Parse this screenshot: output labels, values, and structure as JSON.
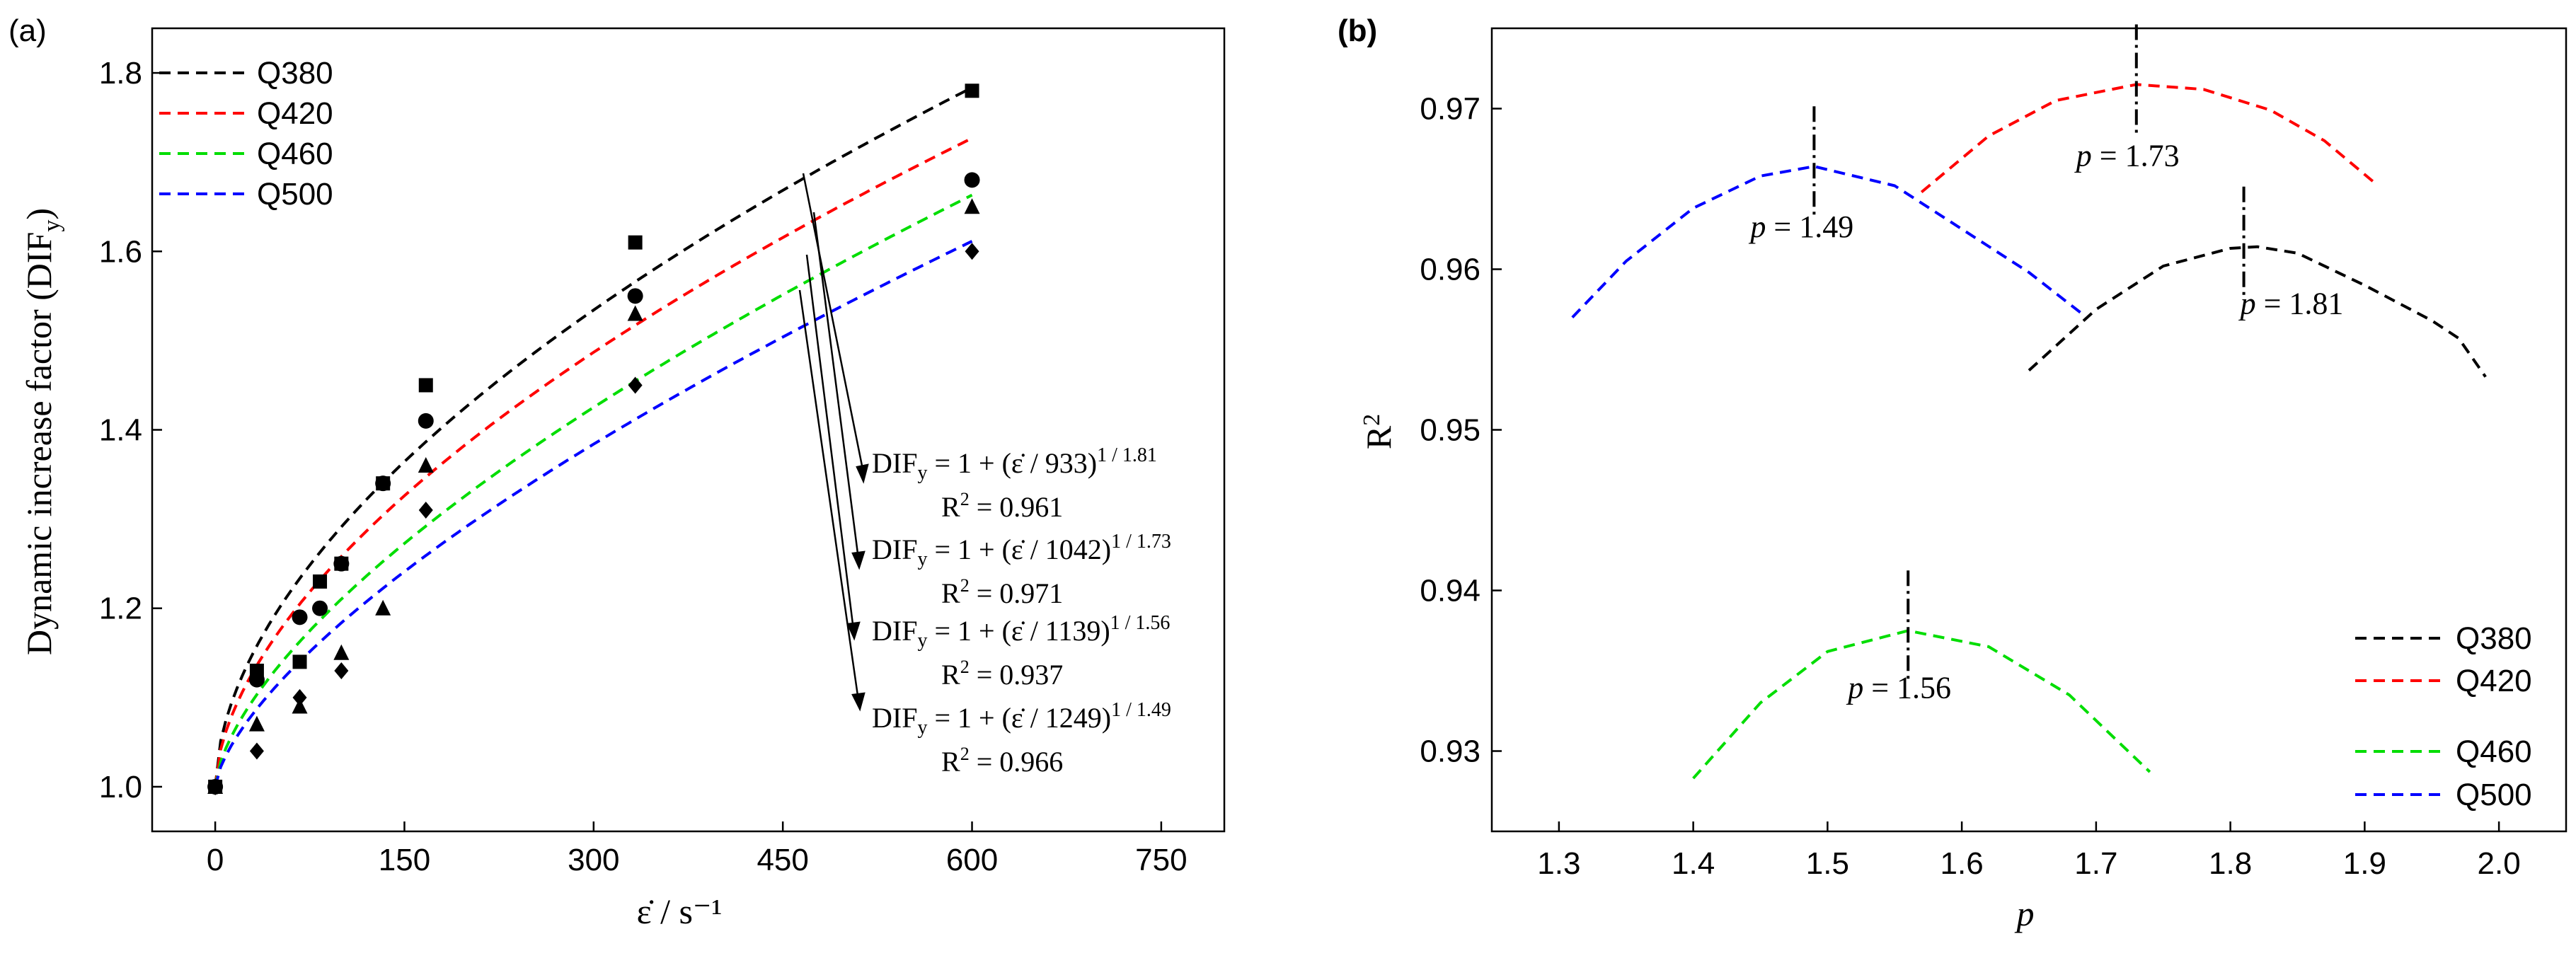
{
  "chart_data": [
    {
      "panel": "(a)",
      "type": "scatter",
      "xlabel": "ε̇ / s⁻¹",
      "ylabel": "Dynamic increase factor (DIF",
      "ylabel_sub": "y",
      "ylabel_close": ")",
      "xlim": [
        -50,
        800
      ],
      "ylim": [
        0.95,
        1.85
      ],
      "xticks": [
        "0",
        "150",
        "300",
        "450",
        "600",
        "750"
      ],
      "yticks": [
        "1.0",
        "1.2",
        "1.4",
        "1.6",
        "1.8"
      ],
      "legend_position": "top-left",
      "series": [
        {
          "name": "Q380",
          "color": "#000000",
          "marker": "square",
          "D": 933,
          "p": 1.81,
          "eq": "DIF",
          "eq_sub": "y",
          "eq_body": " = 1 + (ε̇ / 933)",
          "eq_exp": "1 / 1.81",
          "r2_text": "R",
          "r2_exp": "2",
          "r2_val": " = 0.961",
          "points": [
            [
              0,
              1.0
            ],
            [
              33,
              1.13
            ],
            [
              67,
              1.14
            ],
            [
              83,
              1.23
            ],
            [
              100,
              1.25
            ],
            [
              133,
              1.34
            ],
            [
              167,
              1.45
            ],
            [
              333,
              1.61
            ],
            [
              600,
              1.78
            ]
          ]
        },
        {
          "name": "Q420",
          "color": "#ff0000",
          "marker": "circle",
          "D": 1042,
          "p": 1.73,
          "eq": "DIF",
          "eq_sub": "y",
          "eq_body": " = 1 + (ε̇ / 1042)",
          "eq_exp": "1 / 1.73",
          "r2_text": "R",
          "r2_exp": "2",
          "r2_val": " = 0.971",
          "points": [
            [
              0,
              1.0
            ],
            [
              33,
              1.12
            ],
            [
              67,
              1.19
            ],
            [
              83,
              1.2
            ],
            [
              100,
              1.25
            ],
            [
              133,
              1.34
            ],
            [
              167,
              1.41
            ],
            [
              333,
              1.55
            ],
            [
              600,
              1.68
            ]
          ]
        },
        {
          "name": "Q460",
          "color": "#00dd00",
          "marker": "triangle",
          "D": 1139,
          "p": 1.56,
          "eq": "DIF",
          "eq_sub": "y",
          "eq_body": " = 1 + (ε̇ / 1139)",
          "eq_exp": "1 / 1.56",
          "r2_text": "R",
          "r2_exp": "2",
          "r2_val": " = 0.937",
          "points": [
            [
              0,
              1.0
            ],
            [
              33,
              1.07
            ],
            [
              67,
              1.09
            ],
            [
              100,
              1.15
            ],
            [
              133,
              1.2
            ],
            [
              167,
              1.36
            ],
            [
              333,
              1.53
            ],
            [
              600,
              1.65
            ]
          ]
        },
        {
          "name": "Q500",
          "color": "#0000ff",
          "marker": "diamond",
          "D": 1249,
          "p": 1.49,
          "eq": "DIF",
          "eq_sub": "y",
          "eq_body": " = 1 + (ε̇ / 1249)",
          "eq_exp": "1 / 1.49",
          "r2_text": "R",
          "r2_exp": "2",
          "r2_val": " = 0.966",
          "points": [
            [
              0,
              1.0
            ],
            [
              33,
              1.04
            ],
            [
              67,
              1.1
            ],
            [
              100,
              1.13
            ],
            [
              167,
              1.31
            ],
            [
              333,
              1.45
            ],
            [
              600,
              1.6
            ]
          ]
        }
      ]
    },
    {
      "panel": "(b)",
      "type": "line",
      "xlabel": "p",
      "ylabel": "R",
      "ylabel_exp": "2",
      "xlim": [
        1.25,
        2.05
      ],
      "ylim": [
        0.925,
        0.975
      ],
      "xticks": [
        "1.3",
        "1.4",
        "1.5",
        "1.6",
        "1.7",
        "1.8",
        "1.9",
        "2.0"
      ],
      "yticks": [
        "0.93",
        "0.94",
        "0.95",
        "0.96",
        "0.97"
      ],
      "legend_position": "bottom-right",
      "series": [
        {
          "name": "Q380",
          "color": "#000000",
          "x": [
            1.65,
            1.7,
            1.75,
            1.8,
            1.82,
            1.85,
            1.9,
            1.95,
            1.97,
            1.99
          ],
          "y": [
            0.9537,
            0.9575,
            0.9602,
            0.9613,
            0.9614,
            0.961,
            0.959,
            0.9568,
            0.9557,
            0.9533
          ]
        },
        {
          "name": "Q420",
          "color": "#ff0000",
          "x": [
            1.57,
            1.62,
            1.67,
            1.73,
            1.78,
            1.83,
            1.87,
            1.91
          ],
          "y": [
            0.9648,
            0.9683,
            0.9705,
            0.9715,
            0.9712,
            0.9699,
            0.968,
            0.9652
          ]
        },
        {
          "name": "Q460",
          "color": "#00dd00",
          "x": [
            1.4,
            1.45,
            1.5,
            1.56,
            1.62,
            1.68,
            1.74
          ],
          "y": [
            0.9283,
            0.933,
            0.9362,
            0.9375,
            0.9365,
            0.9335,
            0.9287
          ]
        },
        {
          "name": "Q500",
          "color": "#0000ff",
          "x": [
            1.31,
            1.35,
            1.4,
            1.45,
            1.49,
            1.55,
            1.6,
            1.65,
            1.69
          ],
          "y": [
            0.957,
            0.9605,
            0.9638,
            0.9658,
            0.9664,
            0.9652,
            0.9625,
            0.9598,
            0.9572
          ]
        }
      ],
      "annotations": [
        {
          "label_p": "p",
          "label_val": " = 1.81",
          "x": 1.81,
          "y": 0.9614
        },
        {
          "label_p": "p",
          "label_val": " = 1.73",
          "x": 1.73,
          "y": 0.9715
        },
        {
          "label_p": "p",
          "label_val": " = 1.56",
          "x": 1.56,
          "y": 0.9375
        },
        {
          "label_p": "p",
          "label_val": " = 1.49",
          "x": 1.49,
          "y": 0.9664
        }
      ]
    }
  ]
}
